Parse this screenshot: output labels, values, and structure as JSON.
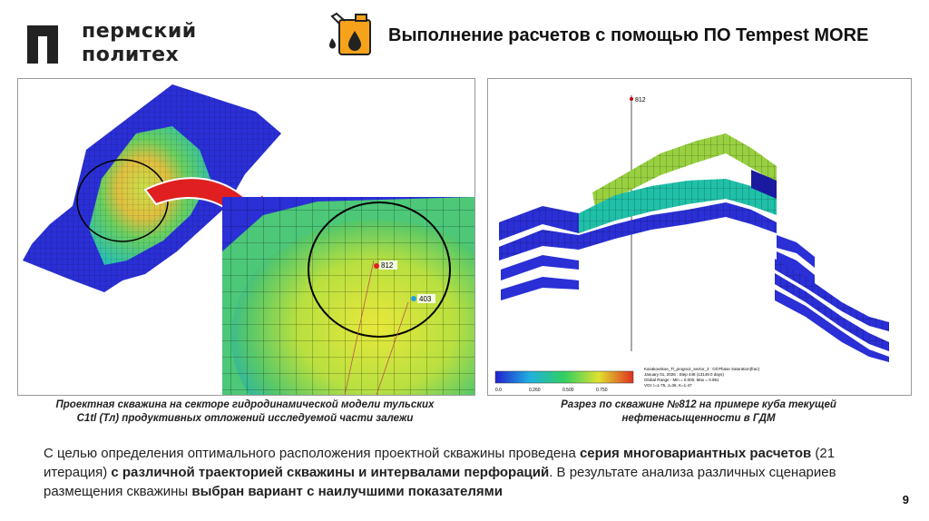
{
  "header": {
    "logo_line1": "пермский",
    "logo_line2": "политех",
    "title": "Выполнение расчетов с помощью ПО Tempest MORE"
  },
  "left_figure": {
    "well_label_1": "812",
    "well_label_2": "403",
    "caption_line1": "Проектная скважина на секторе гидродинамической модели тульских",
    "caption_line2": "C1tl (Тл) продуктивных отложений исследуемой части залежи"
  },
  "right_figure": {
    "well_label": "812",
    "legend_ticks": [
      "0.0",
      "0.260",
      "0.500",
      "0.750"
    ],
    "info_lines": [
      "Kazakovskoe_Tl_prognoz_sector_3 : Oil Phase Saturation(frac)",
      "January 01, 2026 : Step 448 (13149.0 days)",
      "Global Range - Min = 0.000, Max = 0.961",
      "VOI: I=1-75, J=36, K=1-47"
    ],
    "caption_line1": "Разрез по скважине №812 на примере куба текущей",
    "caption_line2": "нефтенасыщенности в ГДМ"
  },
  "body": {
    "p1": "С целью определения оптимального расположения проектной скважины проведена ",
    "b1": "серия многовариантных расчетов",
    "p2": " (21 итерация) ",
    "b2": "с различной траекторией скважины и интервалами перфораций",
    "p3": ". В результате анализа различных сценариев размещения скважины ",
    "b3": "выбран вариант с наилучшими показателями"
  },
  "page_number": "9",
  "colors": {
    "accent_orange": "#f7a21b",
    "logo_dark": "#222222",
    "model_blue": "#2a2fd6",
    "arrow_red": "#e02020"
  }
}
